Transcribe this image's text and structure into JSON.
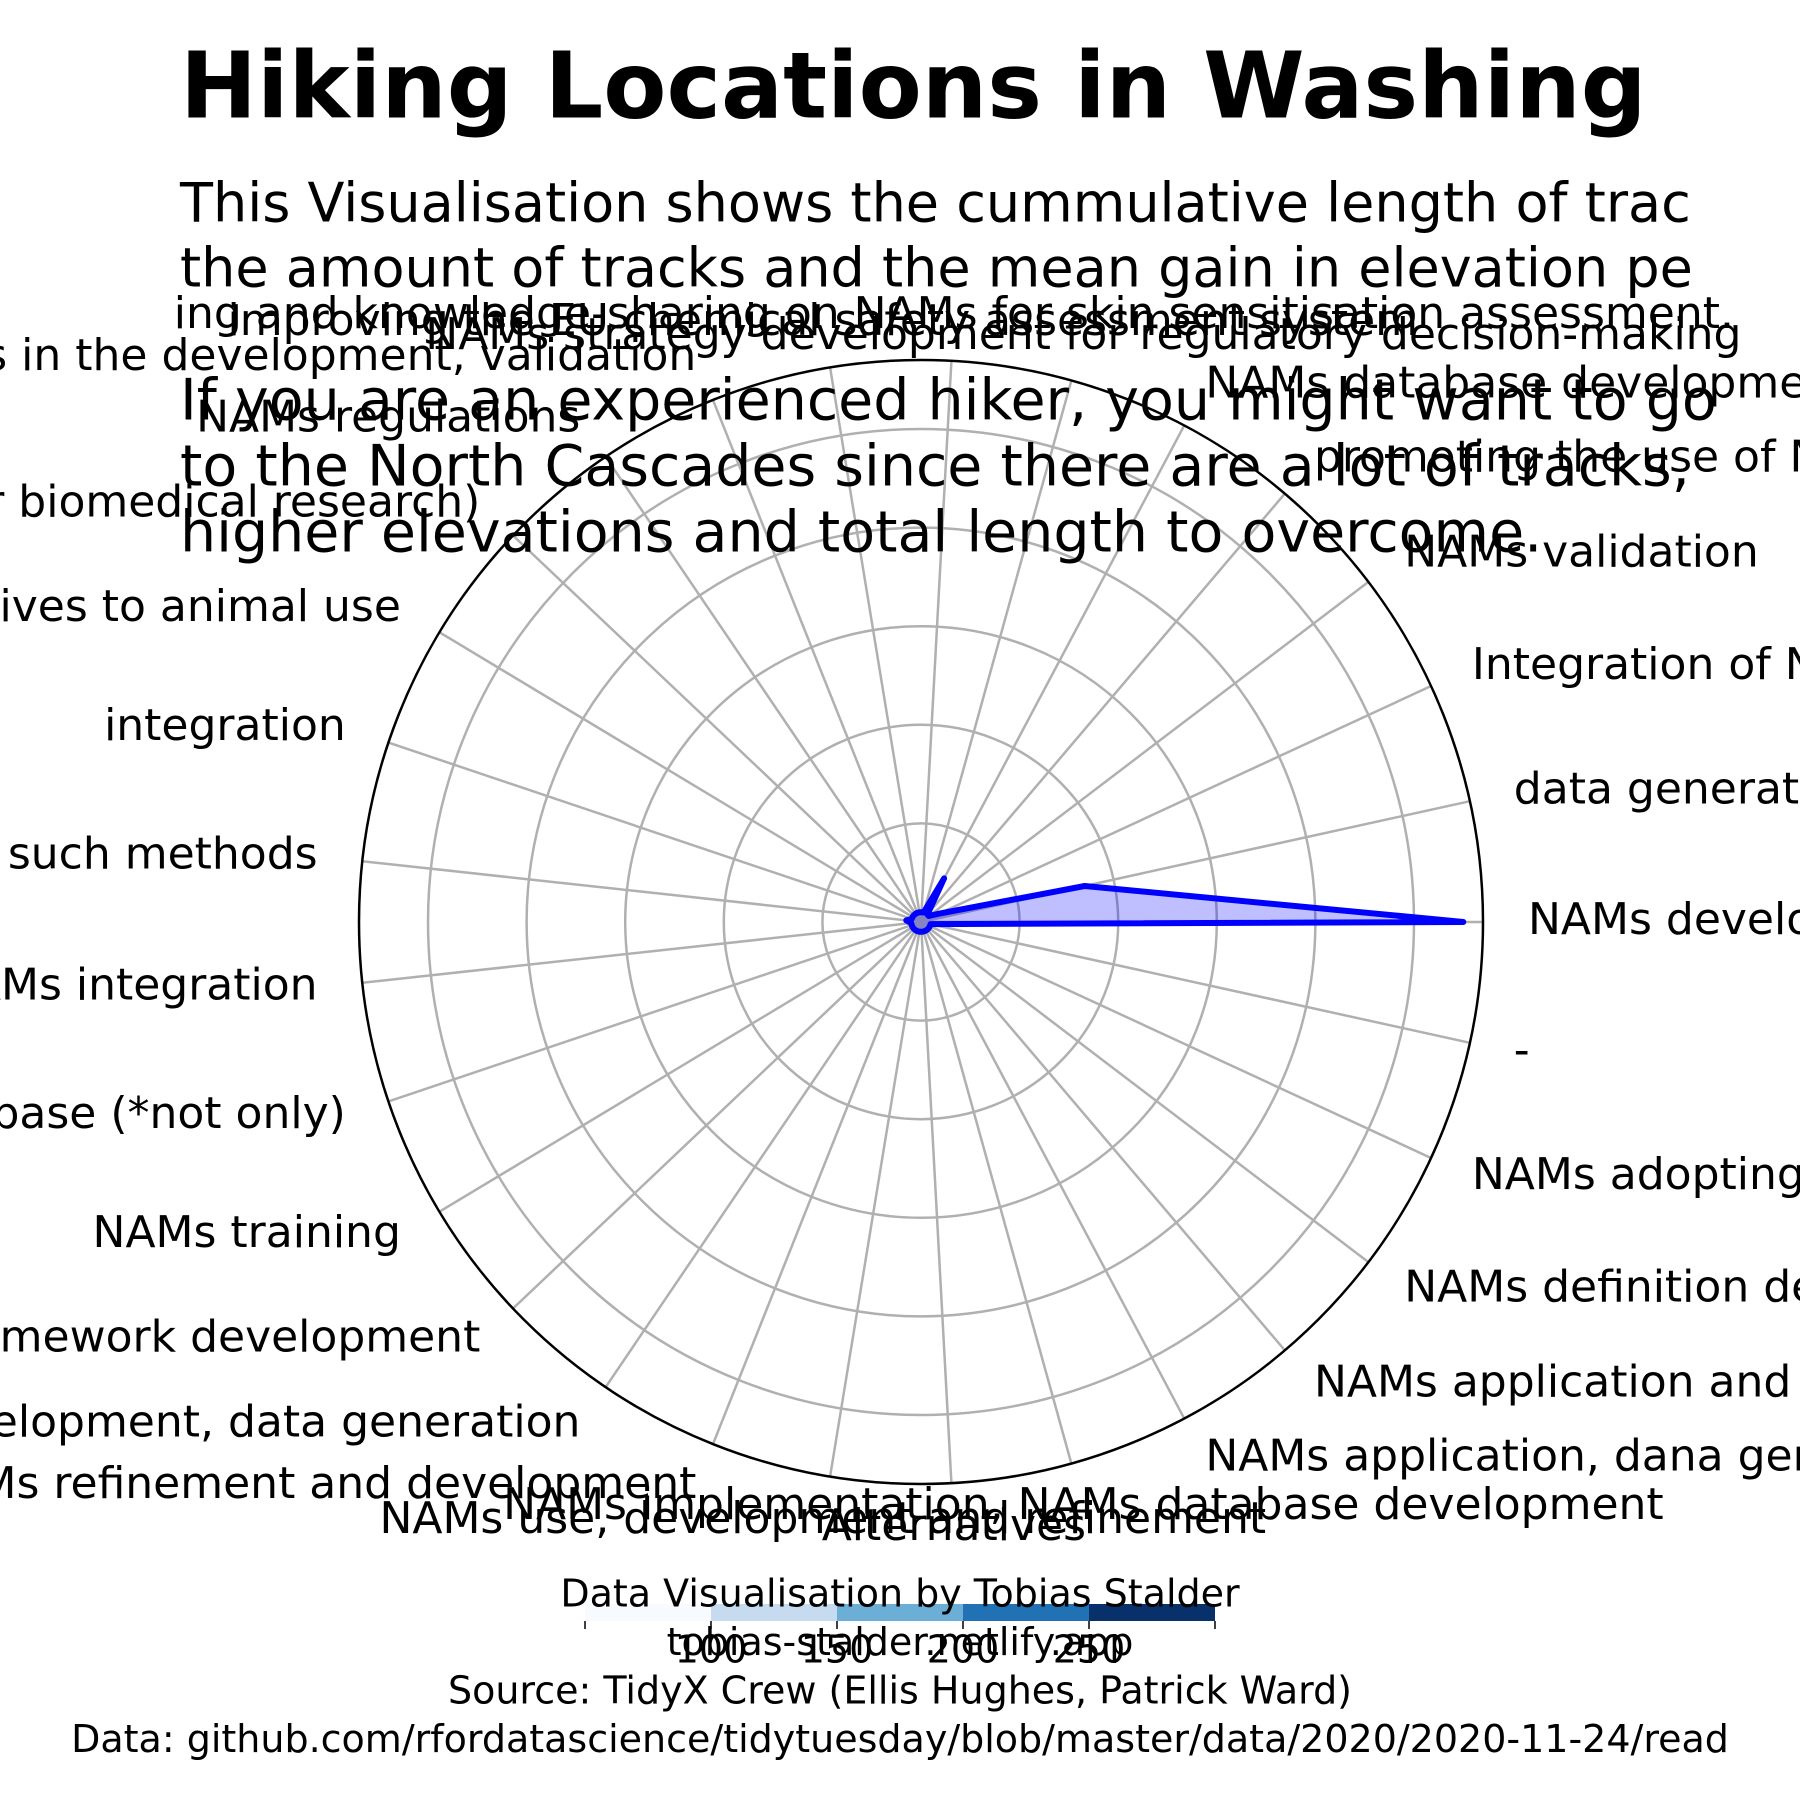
{
  "chart_data": {
    "type": "radar",
    "title": "Hiking Locations in Washing",
    "subtitle": [
      "This Visualisation shows the cummulative length of trac",
      "the amount of tracks and the mean gain in elevation pe"
    ],
    "annotation": [
      "If you are an experienced hiker, you might want to go",
      "to the North Cascades since there are a lot of tracks,",
      "higher elevations and total length to overcome."
    ],
    "categories": [
      "NAMs development",
      "data generation",
      "Integration of New Approach Methodologies results in",
      "NAMs validation",
      "promoting the use of NAMs",
      "NAMs database development",
      "NAMs strategy development for regulatory decision-making",
      "ing and knowledge-sharing on NAMs for skin sensitisation assessment.",
      "improving the EU chemical safety assessment system",
      "dustry stakeholders, and federal agencies in the development, validation",
      "NAMs regulations",
      "s database development (for biomedical research)",
      "on, and harmonization of alternatives to animal use",
      "integration",
      "Testing Approaches and Data Generated from such methods",
      "NAMs integration",
      "NAMs* database (*not only)",
      "NAMs training",
      "Framework development",
      "NAMs database development, data generation",
      "NAMs refinement and development",
      "NAMs use, development and refinement",
      "Alternatives",
      "NAMs implementation, NAMs database development",
      "NAMs application, dana generation",
      "NAMs application and refinement, dana gene",
      "NAMs definition development, NAMs database",
      "NAMs adopting to NM assesm",
      "-"
    ],
    "series": [
      {
        "color": "#0000ff",
        "values": [
          5.5,
          1.7,
          0.2,
          0.1,
          0.1,
          0.5,
          0.1,
          0.1,
          0.1,
          0.1,
          0.1,
          0.1,
          0.1,
          0.1,
          0.15,
          0.1,
          0.1,
          0.1,
          0.1,
          0.1,
          0.1,
          0.1,
          0.1,
          0.1,
          0.1,
          0.1,
          0.1,
          0.1,
          0.1
        ]
      }
    ],
    "ylim": [
      0,
      5.7
    ],
    "yticks": [
      1,
      2,
      3,
      4,
      5
    ],
    "grid": true,
    "colorbar": {
      "lim": [
        50,
        300
      ],
      "ticks": [
        100,
        150,
        200,
        250
      ],
      "bounds": [
        50,
        100,
        150,
        200,
        250,
        300
      ],
      "colors": [
        "#f7fbff",
        "#c6dbef",
        "#6baed6",
        "#2171b5",
        "#08306b"
      ]
    },
    "footer": [
      "Data Visualisation by Tobias Stalder",
      "tobias-stalder.netlify.app",
      "Source: TidyX Crew (Ellis Hughes, Patrick Ward)",
      "Data: github.com/rfordatascience/tidytuesday/blob/master/data/2020/2020-11-24/read"
    ]
  }
}
